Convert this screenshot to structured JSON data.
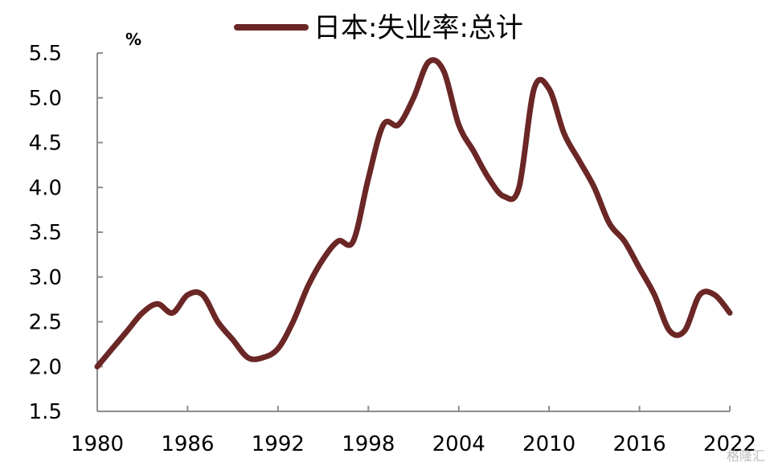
{
  "chart_data": {
    "type": "line",
    "title": "",
    "xlabel": "",
    "ylabel": "%",
    "ylim": [
      1.5,
      5.5
    ],
    "xlim": [
      1980,
      2022
    ],
    "x_ticks": [
      "1980",
      "1986",
      "1992",
      "1998",
      "2004",
      "2010",
      "2016",
      "2022"
    ],
    "y_ticks": [
      "1.5",
      "2.0",
      "2.5",
      "3.0",
      "3.5",
      "4.0",
      "4.5",
      "5.0",
      "5.5"
    ],
    "legend_position": "top-center",
    "series": [
      {
        "name": "日本:失业率:总计",
        "color": "#6b2626",
        "x": [
          1980,
          1981,
          1982,
          1983,
          1984,
          1985,
          1986,
          1987,
          1988,
          1989,
          1990,
          1991,
          1992,
          1993,
          1994,
          1995,
          1996,
          1997,
          1998,
          1999,
          2000,
          2001,
          2002,
          2003,
          2004,
          2005,
          2006,
          2007,
          2008,
          2009,
          2010,
          2011,
          2012,
          2013,
          2014,
          2015,
          2016,
          2017,
          2018,
          2019,
          2020,
          2021,
          2022
        ],
        "y": [
          2.0,
          2.2,
          2.4,
          2.6,
          2.7,
          2.6,
          2.8,
          2.8,
          2.5,
          2.3,
          2.1,
          2.1,
          2.2,
          2.5,
          2.9,
          3.2,
          3.4,
          3.4,
          4.1,
          4.7,
          4.7,
          5.0,
          5.4,
          5.3,
          4.7,
          4.4,
          4.1,
          3.9,
          4.0,
          5.1,
          5.1,
          4.6,
          4.3,
          4.0,
          3.6,
          3.4,
          3.1,
          2.8,
          2.4,
          2.4,
          2.8,
          2.8,
          2.6
        ]
      }
    ]
  },
  "watermark": "格隆汇"
}
